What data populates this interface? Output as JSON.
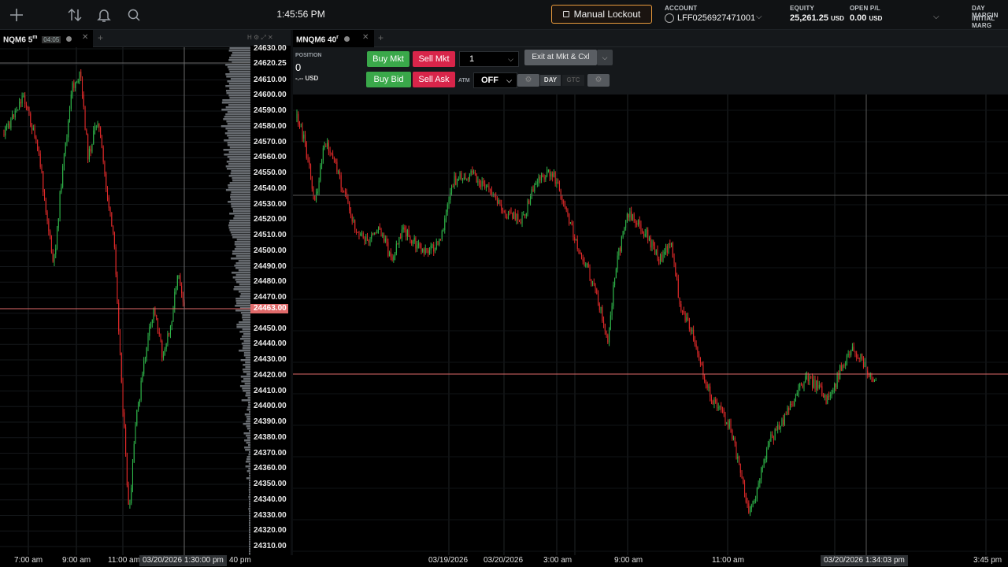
{
  "topbar": {
    "icons": [
      "plus-icon",
      "transfer-icon",
      "bell-icon",
      "search-icon"
    ],
    "clock": "1:45:56 PM",
    "lockout_label": "Manual Lockout",
    "account_label": "ACCOUNT",
    "account_value": "LFF0256927471001",
    "equity_label": "EQUITY",
    "equity_value": "25,261.25",
    "equity_unit": "USD",
    "openpl_label": "OPEN P/L",
    "openpl_value": "0.00",
    "openpl_unit": "USD",
    "daymargin_label": "DAY MARGIN",
    "initialmargin_label": "INITIAL MARG"
  },
  "left_panel": {
    "symbol": "NQM6",
    "timeframe": "5",
    "timeframe_unit": "m",
    "countdown": "04:05",
    "current_price": "24463.00",
    "y_ticks": [
      "24630.00",
      "24620.25",
      "24610.00",
      "24600.00",
      "24590.00",
      "24580.00",
      "24570.00",
      "24560.00",
      "24550.00",
      "24540.00",
      "24530.00",
      "24520.00",
      "24510.00",
      "24500.00",
      "24490.00",
      "24480.00",
      "24470.00",
      "24450.00",
      "24440.00",
      "24430.00",
      "24420.00",
      "24410.00",
      "24400.00",
      "24390.00",
      "24380.00",
      "24370.00",
      "24360.00",
      "24350.00",
      "24340.00",
      "24330.00",
      "24320.00",
      "24310.00"
    ],
    "x_ticks": [
      "7:00 am",
      "9:00 am",
      "11:00 am",
      "40 pm"
    ],
    "crosshair_time": "03/20/2026 1:30:00 pm"
  },
  "right_panel": {
    "symbol": "MNQM6",
    "timeframe": "40",
    "timeframe_unit": "r",
    "position_label": "POSITION",
    "position_value": "0",
    "position_pnl": "-.-- USD",
    "buy_mkt": "Buy Mkt",
    "sell_mkt": "Sell Mkt",
    "buy_bid": "Buy Bid",
    "sell_ask": "Sell Ask",
    "quantity": "1",
    "exit_label": "Exit at Mkt & Cxl",
    "atm_label": "ATM",
    "atm_value": "OFF",
    "tif_day": "DAY",
    "tif_gtc": "GTC",
    "x_ticks": [
      "03/19/2026",
      "03/20/2026",
      "3:00 am",
      "9:00 am",
      "11:00 am",
      "3:45 pm"
    ],
    "crosshair_time": "03/20/2026 1:34:03 pm"
  },
  "colors": {
    "up_candle": "#2fb54a",
    "down_candle": "#e02a2a",
    "price_line": "#e06a6a",
    "lockout_border": "#e89a3c",
    "buy_green": "#3aa84a",
    "sell_red": "#d8254a"
  }
}
